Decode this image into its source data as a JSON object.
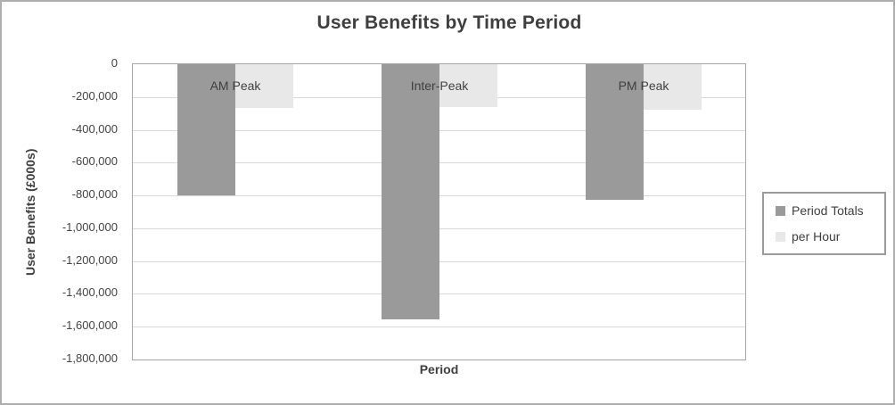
{
  "chart_data": {
    "type": "bar",
    "title": "User Benefits by Time Period",
    "xlabel": "Period",
    "ylabel": "User Benefits (£000s)",
    "categories": [
      "AM Peak",
      "Inter-Peak",
      "PM Peak"
    ],
    "series": [
      {
        "name": "Period Totals",
        "color": "#9a9a9a",
        "values": [
          -800000,
          -1555000,
          -825000
        ]
      },
      {
        "name": "per Hour",
        "color": "#e8e8e8",
        "values": [
          -265000,
          -260000,
          -275000
        ]
      }
    ],
    "ylim": [
      -1800000,
      0
    ],
    "ytick_step": 200000,
    "ytick_labels": [
      "0",
      "-200,000",
      "-400,000",
      "-600,000",
      "-800,000",
      "-1,000,000",
      "-1,200,000",
      "-1,400,000",
      "-1,600,000",
      "-1,800,000"
    ],
    "grid": true,
    "legend_position": "right",
    "bars_direction": "negative-down",
    "colors": {
      "title_text": "#3f3f3f",
      "axis_text": "#444444",
      "gridline": "#d9d9d9",
      "plot_border": "#a6a6a6",
      "legend_border": "#9b9b9b"
    }
  }
}
